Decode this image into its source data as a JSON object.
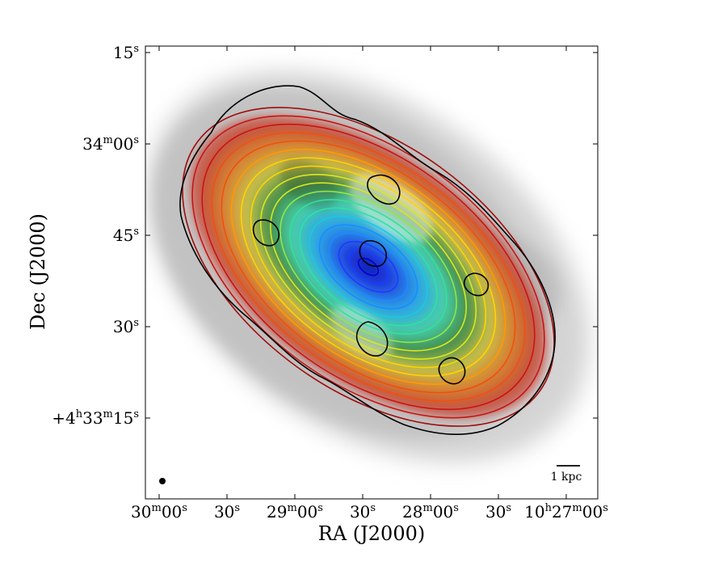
{
  "chart_data": {
    "type": "contour-map",
    "xlabel": "RA (J2000)",
    "ylabel": "Dec (J2000)",
    "x_ticks": [
      {
        "base": "30",
        "unit": "m",
        "sec": "00",
        "unit2": "s"
      },
      {
        "base": "30",
        "unit": "s"
      },
      {
        "base": "29",
        "unit": "m",
        "sec": "00",
        "unit2": "s"
      },
      {
        "base": "30",
        "unit": "s"
      },
      {
        "base": "28",
        "unit": "m",
        "sec": "00",
        "unit2": "s"
      },
      {
        "base": "30",
        "unit": "s"
      },
      {
        "prefix": "10",
        "prefix_unit": "h",
        "base": "27",
        "unit": "m",
        "sec": "00",
        "unit2": "s"
      }
    ],
    "y_ticks": [
      {
        "base": "15",
        "unit": "s"
      },
      {
        "base": "34",
        "unit": "m",
        "sec": "00",
        "unit2": "s"
      },
      {
        "base": "45",
        "unit": "s"
      },
      {
        "base": "30",
        "unit": "s"
      },
      {
        "prefix": "+4",
        "prefix_unit": "h",
        "base": "33",
        "unit": "m",
        "sec": "15",
        "unit2": "s"
      }
    ],
    "scalebar": {
      "label": "1 kpc"
    },
    "ellipse_contours": {
      "count": 19,
      "colormap": [
        "#0000c8",
        "#1b3cff",
        "#1a8cff",
        "#19c8e6",
        "#33e0a0",
        "#8ee84a",
        "#d8e820",
        "#ffd400",
        "#ff9a00",
        "#f05010",
        "#c81414",
        "#a00c0c"
      ]
    },
    "background": {
      "colormap": "grey",
      "overlay_colormap": "jet"
    },
    "colors": {
      "outline": "#000000",
      "background": "#ffffff"
    }
  }
}
